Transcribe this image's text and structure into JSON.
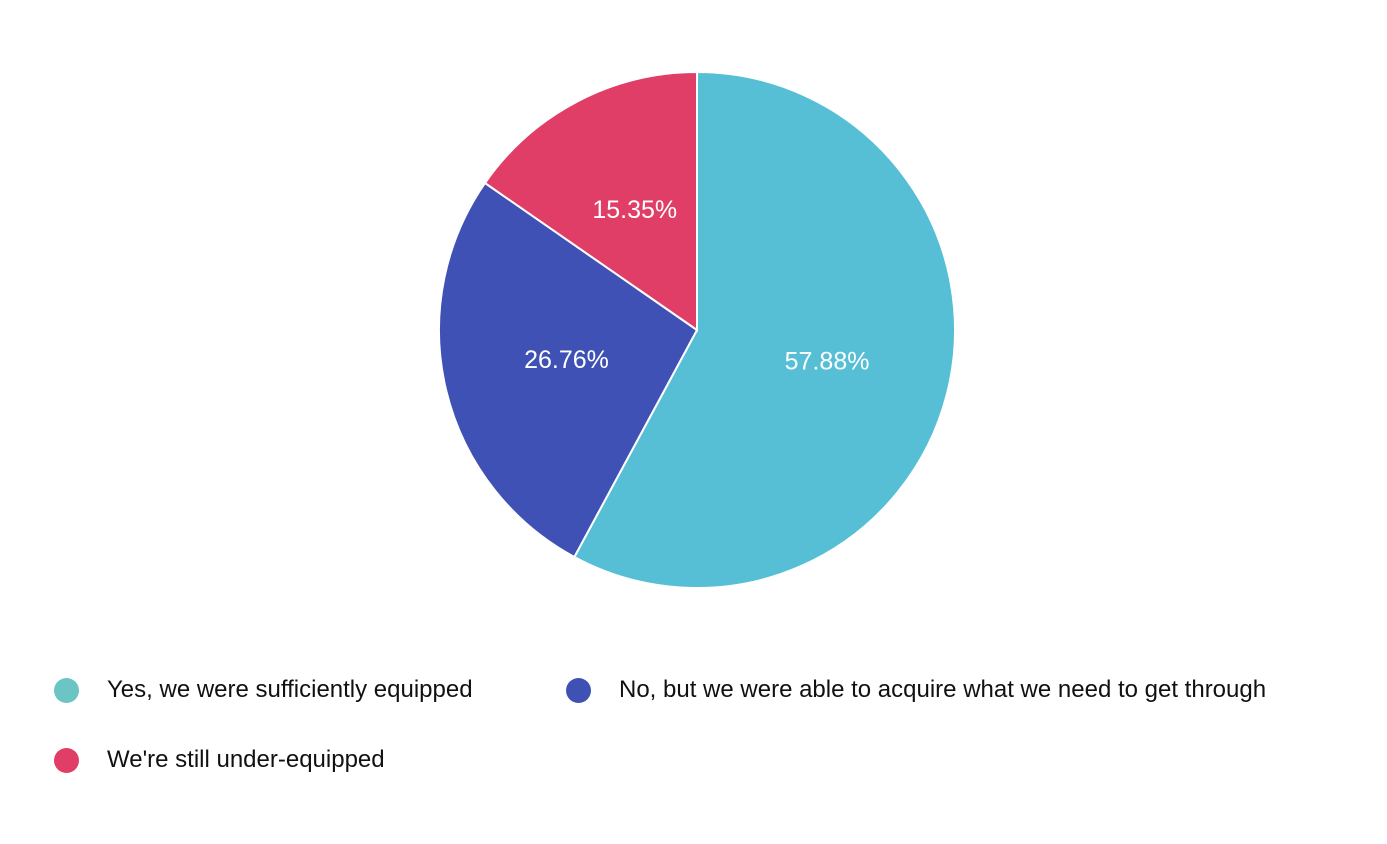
{
  "chart_data": {
    "type": "pie",
    "title": "",
    "start_angle_deg": 0,
    "direction": "clockwise",
    "slices": [
      {
        "label": "Yes, we were sufficiently equipped",
        "value": 57.88,
        "value_label": "57.88%",
        "color": "#56bfd5"
      },
      {
        "label": "No, but we were able to acquire what we need to get through",
        "value": 26.76,
        "value_label": "26.76%",
        "color": "#3f51b5"
      },
      {
        "label": "We're still under-equipped",
        "value": 15.35,
        "value_label": "15.35%",
        "color": "#e03e66"
      }
    ],
    "legend_position": "bottom",
    "legend_swatch_colors": [
      "#6cc5c5",
      "#3f51b5",
      "#e03e66"
    ]
  }
}
